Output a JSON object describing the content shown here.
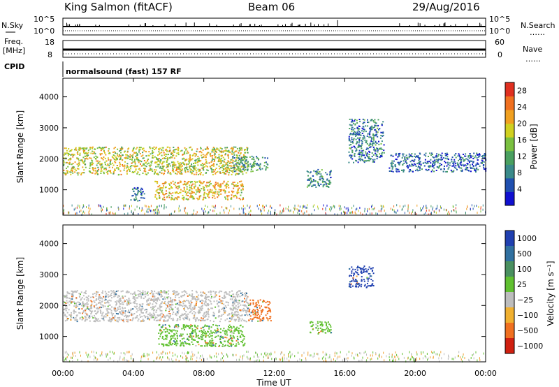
{
  "header": {
    "station": "King Salmon (fitACF)",
    "beam": "Beam 06",
    "date": "29/Aug/2016"
  },
  "noise_panel": {
    "left_label": "N.Sky",
    "right_label": "N.Search",
    "left_ticks": [
      "10^5",
      "10^0"
    ],
    "right_ticks": [
      "10^5",
      "10^0"
    ],
    "right_legend": "……"
  },
  "freq_panel": {
    "left_label_1": "Freq.",
    "left_label_2": "[MHz]",
    "right_label": "Nave",
    "right_legend": "……",
    "left_ticks": [
      "18",
      "8"
    ],
    "right_ticks": [
      "60",
      "0"
    ]
  },
  "cpid": {
    "label": "CPID",
    "program": "normalsound (fast) 157 RF"
  },
  "x_axis": {
    "label": "Time UT",
    "ticks": [
      "00:00",
      "04:00",
      "08:00",
      "12:00",
      "16:00",
      "20:00",
      "00:00"
    ]
  },
  "chart_data": [
    {
      "type": "heatmap",
      "title": "",
      "xlabel": "Time UT",
      "ylabel": "Slant Range [km]",
      "xlim": [
        0,
        24
      ],
      "ylim": [
        180,
        4600
      ],
      "yticks": [
        "1000",
        "2000",
        "3000",
        "4000"
      ],
      "colorbar": {
        "label": "Power [dB]",
        "ticks": [
          "4",
          "8",
          "12",
          "16",
          "20",
          "24",
          "28"
        ],
        "range": [
          0,
          30
        ]
      },
      "regions": [
        {
          "t0": 0.0,
          "t1": 10.5,
          "r0": 1500,
          "r1": 2400,
          "value": 18
        },
        {
          "t0": 5.2,
          "t1": 10.2,
          "r0": 700,
          "r1": 1300,
          "value": 20
        },
        {
          "t0": 9.6,
          "t1": 11.6,
          "r0": 1600,
          "r1": 2100,
          "value": 10
        },
        {
          "t0": 3.8,
          "t1": 4.6,
          "r0": 650,
          "r1": 1100,
          "value": 6
        },
        {
          "t0": 13.8,
          "t1": 15.2,
          "r0": 1100,
          "r1": 1700,
          "value": 8
        },
        {
          "t0": 16.2,
          "t1": 18.2,
          "r0": 1900,
          "r1": 3300,
          "value": 7
        },
        {
          "t0": 18.5,
          "t1": 24.0,
          "r0": 1600,
          "r1": 2200,
          "value": 5
        }
      ]
    },
    {
      "type": "heatmap",
      "title": "",
      "xlabel": "Time UT",
      "ylabel": "Slant Range [km]",
      "xlim": [
        0,
        24
      ],
      "ylim": [
        180,
        4600
      ],
      "yticks": [
        "1000",
        "2000",
        "3000",
        "4000"
      ],
      "colorbar": {
        "label": "Velocity [m s⁻¹]",
        "ticks": [
          "1000",
          "500",
          "100",
          "25",
          "−25",
          "−100",
          "−500",
          "−1000"
        ]
      },
      "regions": [
        {
          "t0": 0.0,
          "t1": 10.5,
          "r0": 1500,
          "r1": 2500,
          "value": "gray"
        },
        {
          "t0": 5.4,
          "t1": 10.3,
          "r0": 700,
          "r1": 1400,
          "value": 100
        },
        {
          "t0": 10.5,
          "t1": 11.8,
          "r0": 1500,
          "r1": 2200,
          "value": -500
        },
        {
          "t0": 16.2,
          "t1": 17.6,
          "r0": 2600,
          "r1": 3300,
          "value": 1000
        },
        {
          "t0": 14.0,
          "t1": 15.2,
          "r0": 1100,
          "r1": 1500,
          "value": 100
        }
      ]
    }
  ]
}
